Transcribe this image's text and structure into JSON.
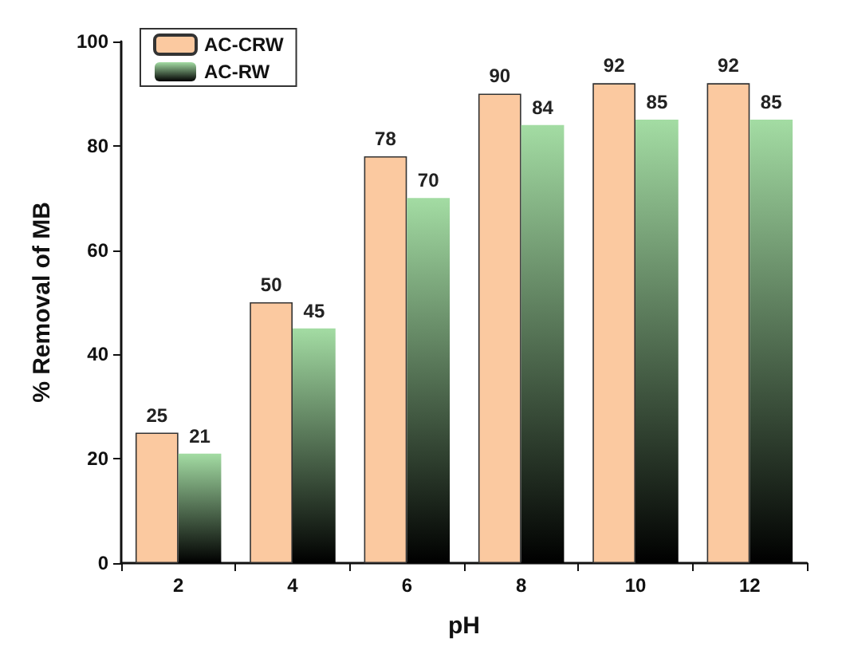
{
  "chart_data": {
    "type": "bar",
    "xlabel": "pH",
    "ylabel": "% Removal of MB",
    "categories": [
      "2",
      "4",
      "6",
      "8",
      "10",
      "12"
    ],
    "series": [
      {
        "name": "AC-CRW",
        "color": "#fbc9a0",
        "values": [
          25,
          50,
          78,
          90,
          92,
          92
        ]
      },
      {
        "name": "AC-RW",
        "color": "#a3dca3",
        "values": [
          21,
          45,
          70,
          84,
          85,
          85
        ]
      }
    ],
    "ylim": [
      0,
      100
    ],
    "yticks": [
      0,
      20,
      40,
      60,
      80,
      100
    ],
    "data_labels": true,
    "legend": "top left",
    "grid": false
  }
}
